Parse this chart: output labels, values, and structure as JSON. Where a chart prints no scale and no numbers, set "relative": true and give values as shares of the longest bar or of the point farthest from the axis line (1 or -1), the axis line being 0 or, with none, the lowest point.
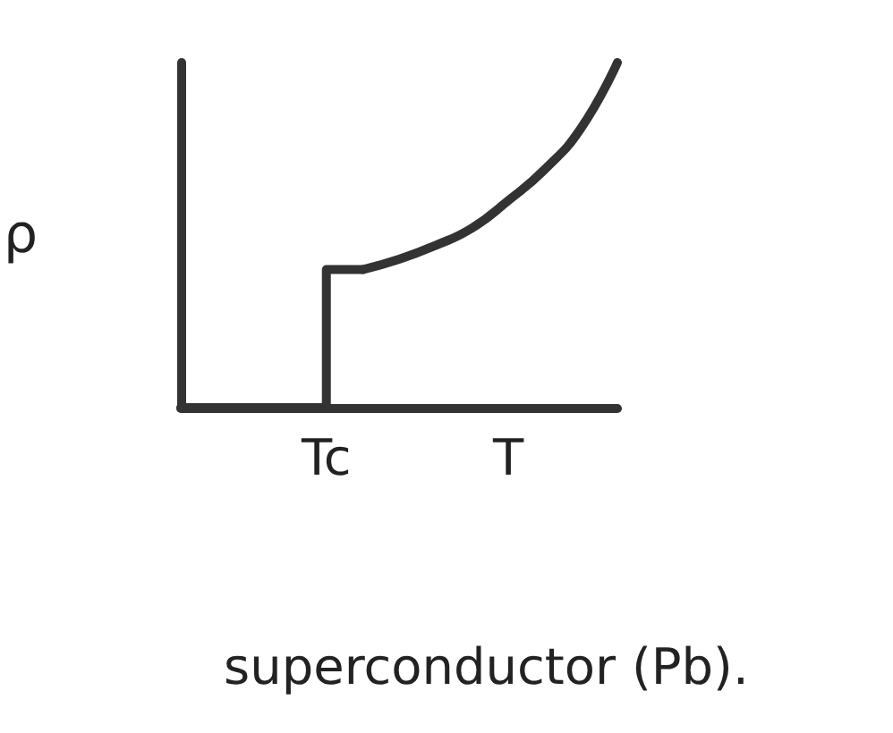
{
  "chart_data": {
    "type": "line",
    "title": "superconductor (Pb).",
    "ylabel": "ρ",
    "relative": true,
    "marker": "none",
    "categories": [
      null,
      null,
      null,
      null,
      "Tc",
      null,
      null,
      null,
      null,
      "T",
      null,
      null,
      null
    ],
    "series": [
      {
        "type": "step",
        "color": "#333333",
        "values": [
          0,
          0,
          0,
          0,
          0,
          0.4,
          null,
          null,
          null,
          null,
          null,
          null,
          null
        ]
      },
      {
        "color": "#333333",
        "values": [
          null,
          null,
          null,
          null,
          null,
          0.4,
          0.43,
          0.47,
          0.52,
          0.6,
          0.69,
          0.81,
          1
        ]
      }
    ]
  }
}
